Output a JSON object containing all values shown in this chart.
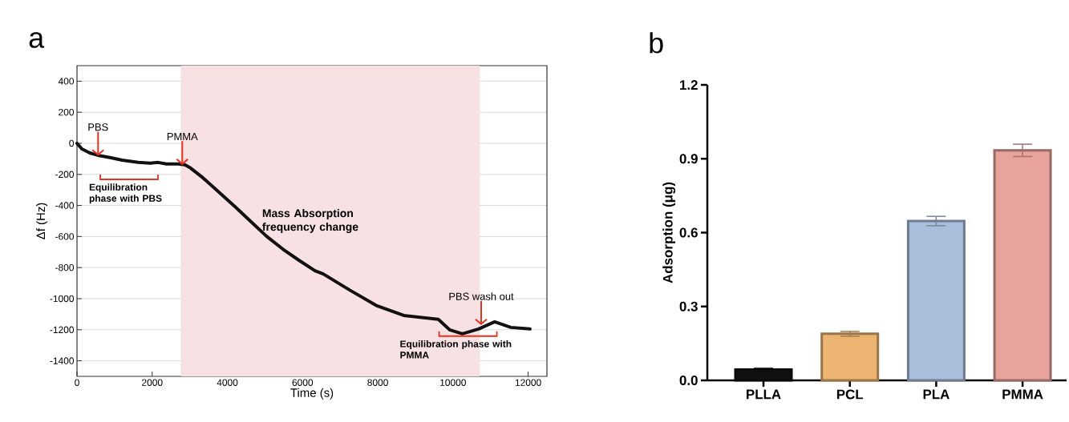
{
  "chart_data": [
    {
      "type": "line",
      "title": "a",
      "xlabel": "Time (s)",
      "ylabel": "Δf (Hz)",
      "series": [
        {
          "color": "#111111",
          "x": [
            0,
            130,
            340,
            556,
            877,
            1200,
            1626,
            1947,
            2160,
            2375,
            2700,
            2870,
            3020,
            3340,
            3770,
            4190,
            4620,
            5050,
            5480,
            5910,
            6330,
            6550,
            7250,
            7980,
            8690,
            9610,
            9910,
            10250,
            10680,
            11110,
            11540,
            12050
          ],
          "values": [
            0,
            -36,
            -62,
            -77,
            -92,
            -108,
            -123,
            -128,
            -123,
            -133,
            -133,
            -138,
            -159,
            -220,
            -313,
            -405,
            -503,
            -600,
            -682,
            -754,
            -820,
            -841,
            -944,
            -1046,
            -1108,
            -1133,
            -1200,
            -1226,
            -1195,
            -1149,
            -1185,
            -1195
          ]
        }
      ],
      "xlim": [
        0,
        12500
      ],
      "ylim": [
        -1500,
        500
      ],
      "xticks": [
        0,
        2000,
        4000,
        6000,
        8000,
        10000,
        12000
      ],
      "yticks": [
        -1400,
        -1200,
        -1000,
        -800,
        -600,
        -400,
        -200,
        0,
        200,
        400
      ],
      "grid": "y",
      "bands": [
        {
          "axis": "x",
          "from": 2760,
          "to": 10716,
          "label": "Mass Absorption frequency change",
          "color": "#f8e1e3"
        }
      ],
      "annotations": [
        {
          "text": "PBS",
          "x": 560,
          "y": -80
        },
        {
          "text": "PMMA",
          "x": 2800,
          "y": -140
        },
        {
          "text": "PBS wash out",
          "x": 10750,
          "y": -1170
        },
        "Equilibration phase with PBS",
        {
          "text": "Equilibration phase with PMMA",
          "x": 10400,
          "y": -1241
        }
      ]
    },
    {
      "type": "bar",
      "title": "b",
      "ylabel": "Adsorption (μg)",
      "categories": [
        "PLLA",
        "PCL",
        "PLA",
        "PMMA"
      ],
      "values": [
        0.044,
        0.189,
        0.647,
        0.934
      ],
      "errors": [
        0.005,
        0.01,
        0.019,
        0.025
      ],
      "colors": [
        "#111111",
        "#ebb470",
        "#a9bedb",
        "#e9a39d"
      ],
      "ylim": [
        0,
        1.2
      ],
      "yticks": [
        {
          "value": 0,
          "label": "0.0"
        },
        {
          "value": 0.3,
          "label": "0.3"
        },
        {
          "value": 0.6,
          "label": "0.6"
        },
        {
          "value": 0.9,
          "label": "0.9"
        },
        {
          "value": 1.2,
          "label": "1.2"
        }
      ]
    }
  ]
}
